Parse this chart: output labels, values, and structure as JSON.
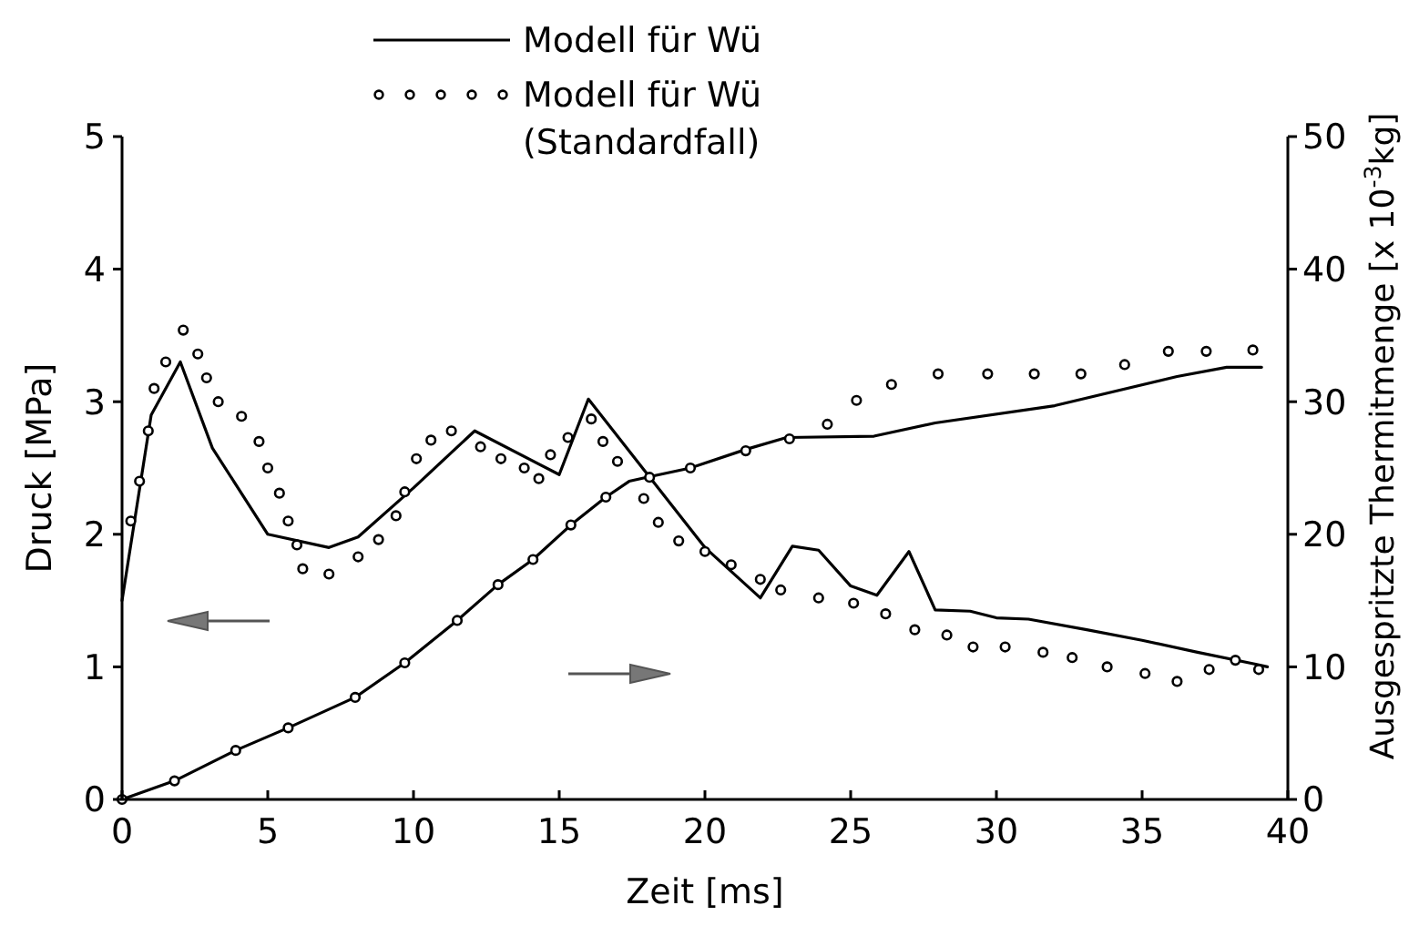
{
  "chart_data": {
    "type": "line",
    "xlabel": "Zeit [ms]",
    "ylabel": "Druck [MPa]",
    "y2label": "Ausgespritzte Thermitmenge [x 10$^{-3}$kg]",
    "xlim": [
      0,
      40
    ],
    "xticks": [
      0,
      5,
      10,
      15,
      20,
      25,
      30,
      35,
      40
    ],
    "ylim": [
      0,
      5
    ],
    "yticks": [
      0,
      1,
      2,
      3,
      4,
      5
    ],
    "y2lim": [
      0,
      50
    ],
    "y2ticks": [
      0,
      10,
      20,
      30,
      40,
      50
    ],
    "grid": false,
    "legend": "top",
    "series": [
      {
        "name": "Modell für Wü",
        "color": "#000000",
        "line_style": "solid",
        "marker": "none",
        "x": [
          0,
          1,
          2,
          3.1,
          5,
          7.1,
          8.1,
          10,
          12.1,
          15,
          16,
          20,
          21.9,
          23,
          23.9,
          25,
          25.9,
          27,
          27.9,
          29.1,
          30,
          31.1,
          33.1,
          35,
          36.9,
          38.9,
          39.3
        ],
        "values": [
          1.5,
          2.9,
          3.3,
          2.65,
          2.0,
          1.9,
          1.98,
          2.35,
          2.78,
          2.45,
          3.02,
          1.9,
          1.52,
          1.91,
          1.88,
          1.61,
          1.54,
          1.87,
          1.43,
          1.42,
          1.37,
          1.36,
          1.28,
          1.2,
          1.11,
          1.02,
          1.0
        ]
      },
      {
        "name": "Modell für Wü\n(Standardfall)",
        "type": "scatter",
        "color": "#000000",
        "marker": "circle",
        "x": [
          0.3,
          0.6,
          0.9,
          1.1,
          1.5,
          2.1,
          2.6,
          2.9,
          3.3,
          4.1,
          4.7,
          5.0,
          5.4,
          5.7,
          6.0,
          6.2,
          7.1,
          8.1,
          8.8,
          9.4,
          9.7,
          10.1,
          10.6,
          11.3,
          12.3,
          13,
          13.8,
          14.3,
          14.7,
          15.3,
          16.1,
          16.5,
          17,
          17.9,
          18.4,
          19.1,
          20,
          20.9,
          21.9,
          22.6,
          23.9,
          25.1,
          26.2,
          27.2,
          28.3,
          29.2,
          30.3,
          31.6,
          32.6,
          33.8,
          35.1,
          36.2,
          37.3,
          38.2,
          39
        ],
        "values": [
          2.1,
          2.4,
          2.78,
          3.1,
          3.3,
          3.54,
          3.36,
          3.18,
          3.0,
          2.89,
          2.7,
          2.5,
          2.31,
          2.1,
          1.92,
          1.74,
          1.7,
          1.83,
          1.96,
          2.14,
          2.32,
          2.57,
          2.71,
          2.78,
          2.66,
          2.57,
          2.5,
          2.42,
          2.6,
          2.73,
          2.87,
          2.7,
          2.55,
          2.27,
          2.09,
          1.95,
          1.87,
          1.77,
          1.66,
          1.58,
          1.52,
          1.48,
          1.4,
          1.28,
          1.24,
          1.15,
          1.15,
          1.11,
          1.07,
          1.0,
          0.95,
          0.89,
          0.98,
          1.05,
          0.98
        ]
      },
      {
        "axis": "y2",
        "color": "#000000",
        "line_style": "solid",
        "marker": "none",
        "x": [
          0,
          1.8,
          3.9,
          5.7,
          8,
          9.7,
          11.5,
          12.9,
          14.1,
          15.4,
          16.6,
          17.4,
          18,
          19.5,
          21.4,
          22.8,
          25.8,
          27.9,
          32,
          36.2,
          37.9,
          39.1
        ],
        "values": [
          0,
          1.4,
          3.7,
          5.4,
          7.7,
          10.3,
          13.5,
          16.2,
          18.1,
          20.7,
          22.8,
          24,
          24.3,
          25,
          26.4,
          27.3,
          27.4,
          28.4,
          29.7,
          31.9,
          32.6,
          32.6
        ]
      },
      {
        "type": "scatter",
        "axis": "y2",
        "color": "#000000",
        "marker": "circle",
        "x": [
          0,
          1.8,
          3.9,
          5.7,
          8,
          9.7,
          11.5,
          12.9,
          14.1,
          15.4,
          16.6,
          18.1,
          19.5,
          21.4,
          22.9,
          24.2,
          25.2,
          26.4,
          28,
          29.7,
          31.3,
          32.9,
          34.4,
          35.9,
          37.2,
          38.8
        ],
        "values": [
          0,
          1.4,
          3.7,
          5.4,
          7.7,
          10.3,
          13.5,
          16.2,
          18.1,
          20.7,
          22.8,
          24.3,
          25,
          26.3,
          27.2,
          28.3,
          30.1,
          31.3,
          32.1,
          32.1,
          32.1,
          32.1,
          32.8,
          33.8,
          33.8,
          33.9
        ]
      }
    ]
  }
}
